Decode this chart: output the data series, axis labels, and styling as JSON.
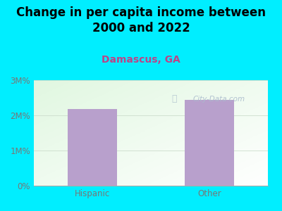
{
  "title": "Change in per capita income between\n2000 and 2022",
  "subtitle": "Damascus, GA",
  "categories": [
    "Hispanic",
    "Other"
  ],
  "values": [
    2.18,
    2.45
  ],
  "bar_color": "#b8a0cc",
  "background_color": "#00eeff",
  "title_fontsize": 12,
  "subtitle_fontsize": 10,
  "subtitle_color": "#bb4488",
  "title_color": "#000000",
  "tick_label_color": "#777777",
  "ylim": [
    0,
    3
  ],
  "yticks": [
    0,
    1,
    2,
    3
  ],
  "ytick_labels": [
    "0%",
    "1M%",
    "2M%",
    "3M%"
  ],
  "watermark": "City-Data.com",
  "watermark_color": "#aabbcc",
  "grid_color": "#ccddcc"
}
